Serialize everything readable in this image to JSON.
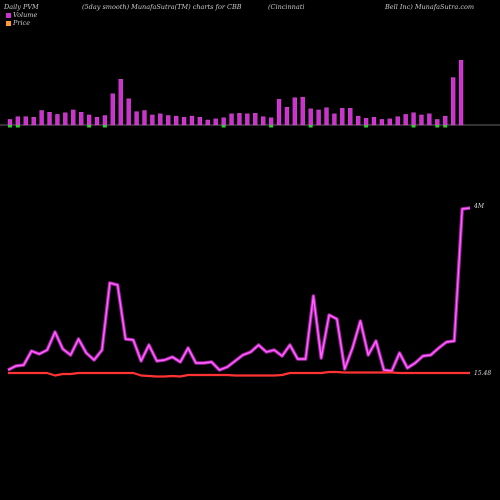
{
  "header": {
    "left": "Daily PVM",
    "mid": "(5day smooth) MunafaSutra(TM) charts for CBB",
    "right1": "(Cincinnati",
    "right2": "Bell Inc) MunafaSutra.com"
  },
  "legend": [
    {
      "label": "Volume",
      "color": "#cc33cc"
    },
    {
      "label": "Price",
      "color": "#ff9933"
    }
  ],
  "colors": {
    "volume": "#cc33cc",
    "volume_line": "#ff66ff",
    "price": "#ff3333",
    "zero_line": "#cccccc",
    "small_bar": "#33cc33"
  },
  "chart_data": [
    {
      "type": "bar",
      "name_printed": "",
      "series": [
        {
          "name": "Volume",
          "values": [
            0.5,
            0.75,
            0.75,
            0.7,
            1.3,
            1.15,
            0.95,
            1.1,
            1.35,
            1.15,
            0.9,
            0.7,
            0.85,
            2.8,
            4.1,
            2.35,
            1.2,
            1.3,
            0.9,
            1.0,
            0.85,
            0.8,
            0.7,
            0.8,
            0.7,
            0.45,
            0.55,
            0.65,
            1.0,
            1.05,
            1.0,
            1.05,
            0.75,
            0.65,
            2.3,
            1.6,
            2.45,
            2.5,
            1.45,
            1.35,
            1.55,
            1.0,
            1.5,
            1.5,
            0.8,
            0.6,
            0.7,
            0.5,
            0.55,
            0.75,
            0.95,
            1.1,
            0.9,
            1.0,
            0.5,
            0.8,
            4.25,
            5.8
          ]
        }
      ],
      "small_bar_indices": [
        0,
        1,
        10,
        12,
        27,
        33,
        38,
        45,
        51,
        54,
        55,
        63
      ],
      "ylim": [
        0,
        6
      ]
    },
    {
      "type": "line",
      "series": [
        {
          "name": "Volume",
          "values": [
            0.3,
            0.5,
            0.55,
            1.25,
            1.1,
            1.3,
            2.2,
            1.35,
            1.05,
            1.85,
            1.15,
            0.8,
            1.3,
            4.65,
            4.55,
            1.85,
            1.8,
            0.75,
            1.55,
            0.75,
            0.8,
            0.95,
            0.7,
            1.4,
            0.65,
            0.65,
            0.7,
            0.3,
            0.45,
            0.75,
            1.05,
            1.2,
            1.55,
            1.2,
            1.3,
            1.0,
            1.55,
            0.85,
            0.85,
            4.0,
            0.9,
            3.05,
            2.85,
            0.35,
            1.4,
            2.75,
            1.05,
            1.75,
            0.3,
            0.25,
            1.15,
            0.4,
            0.65,
            1.0,
            1.05,
            1.4,
            1.7,
            1.75,
            8.35,
            8.4
          ]
        },
        {
          "name": "Price",
          "values": [
            15.6,
            15.6,
            15.6,
            15.6,
            15.6,
            15.6,
            15.55,
            15.58,
            15.58,
            15.6,
            15.6,
            15.6,
            15.6,
            15.6,
            15.6,
            15.6,
            15.6,
            15.55,
            15.54,
            15.53,
            15.53,
            15.54,
            15.53,
            15.56,
            15.56,
            15.56,
            15.56,
            15.56,
            15.56,
            15.55,
            15.55,
            15.55,
            15.55,
            15.55,
            15.55,
            15.56,
            15.6,
            15.6,
            15.6,
            15.6,
            15.6,
            15.62,
            15.62,
            15.61,
            15.61,
            15.61,
            15.61,
            15.61,
            15.61,
            15.61,
            15.6,
            15.6,
            15.6,
            15.6,
            15.6,
            15.6,
            15.6,
            15.6,
            15.6,
            15.6
          ]
        }
      ],
      "volume_ylim": [
        0,
        8.4
      ],
      "price_level": 15.48,
      "labels": {
        "top": "4M",
        "bottom": "15.48"
      }
    }
  ]
}
